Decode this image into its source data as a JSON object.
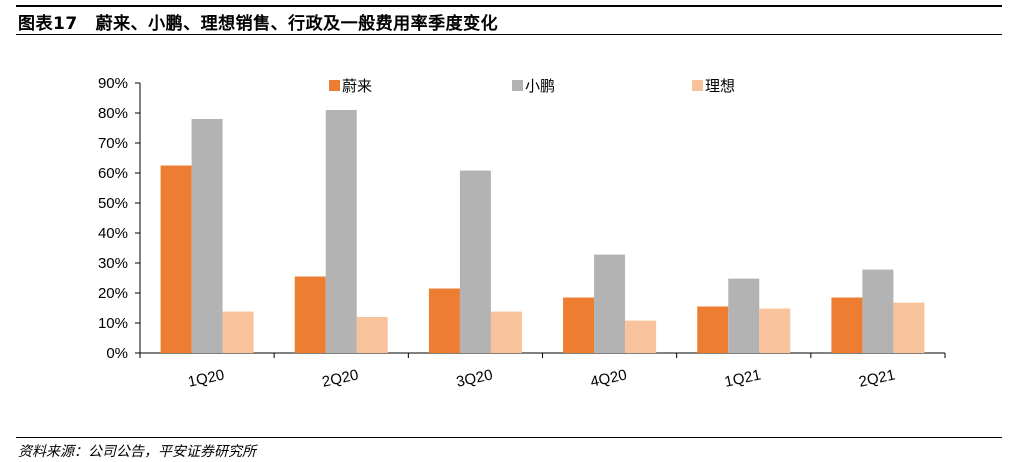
{
  "figure": {
    "label": "图表17",
    "title": "蔚来、小鹏、理想销售、行政及一般费用率季度变化"
  },
  "source": "资料来源：公司公告，平安证券研究所",
  "chart_data": {
    "type": "bar",
    "categories": [
      "1Q20",
      "2Q20",
      "3Q20",
      "4Q20",
      "1Q21",
      "2Q21"
    ],
    "series": [
      {
        "name": "蔚来",
        "color": "#ED7D31",
        "values": [
          62.5,
          25.5,
          21.5,
          18.5,
          15.5,
          18.5
        ]
      },
      {
        "name": "小鹏",
        "color": "#B3B3B3",
        "values": [
          78,
          81,
          60.8,
          32.8,
          24.8,
          27.8
        ]
      },
      {
        "name": "理想",
        "color": "#F8C29A",
        "values": [
          13.8,
          12,
          13.8,
          10.8,
          14.8,
          16.8
        ]
      }
    ],
    "ylim": [
      0,
      90
    ],
    "y_ticks": [
      0,
      10,
      20,
      30,
      40,
      50,
      60,
      70,
      80,
      90
    ],
    "y_tick_format": "percent",
    "legend_position": "top",
    "grid": false
  }
}
